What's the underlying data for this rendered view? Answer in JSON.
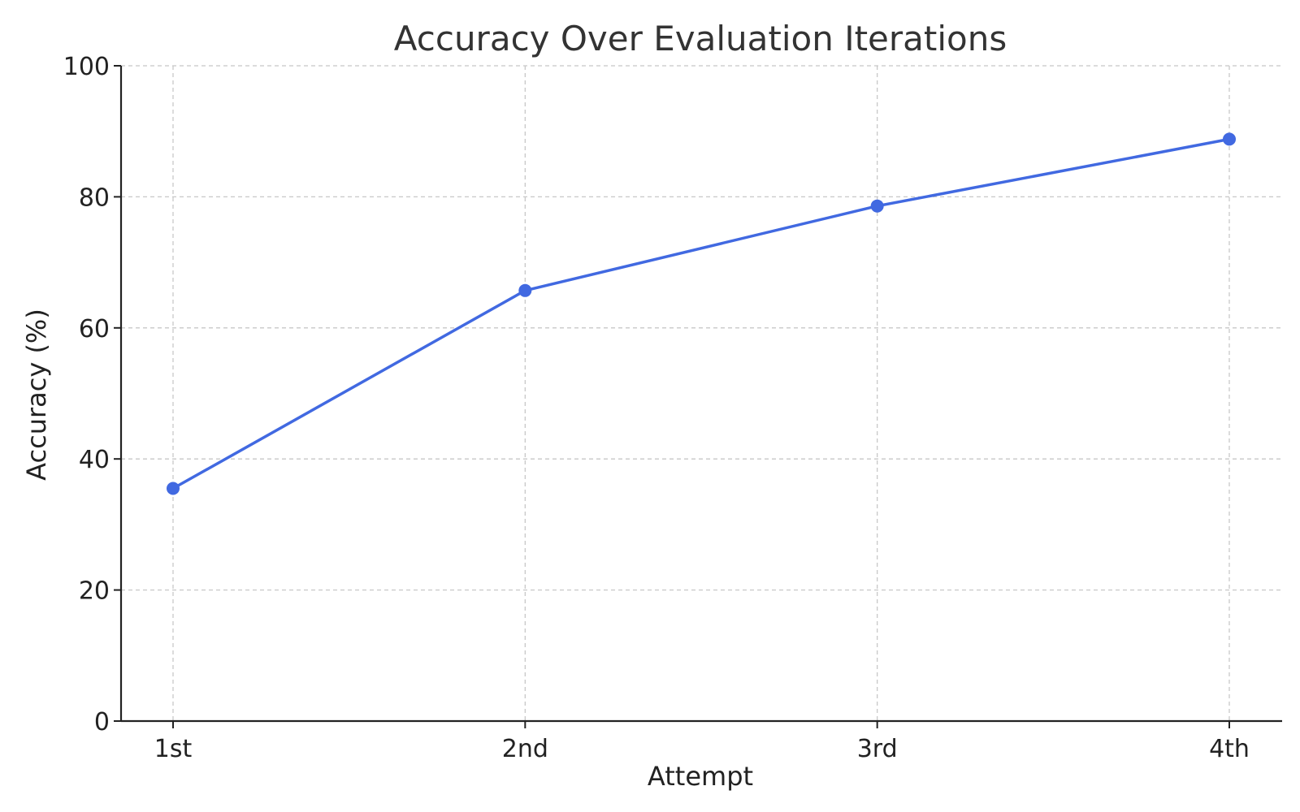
{
  "chart_data": {
    "type": "line",
    "title": "Accuracy Over Evaluation Iterations",
    "xlabel": "Attempt",
    "ylabel": "Accuracy (%)",
    "categories": [
      "1st",
      "2nd",
      "3rd",
      "4th"
    ],
    "series": [
      {
        "values": [
          35.5,
          65.7,
          78.6,
          88.8
        ],
        "color": "#4169E1",
        "marker": "circle"
      }
    ],
    "ylim": [
      0,
      100
    ],
    "yticks": [
      0,
      20,
      40,
      60,
      80,
      100
    ],
    "ytick_labels": [
      "0",
      "20",
      "40",
      "60",
      "80",
      "100"
    ],
    "grid": true,
    "grid_style": "dashed",
    "legend": "none"
  }
}
